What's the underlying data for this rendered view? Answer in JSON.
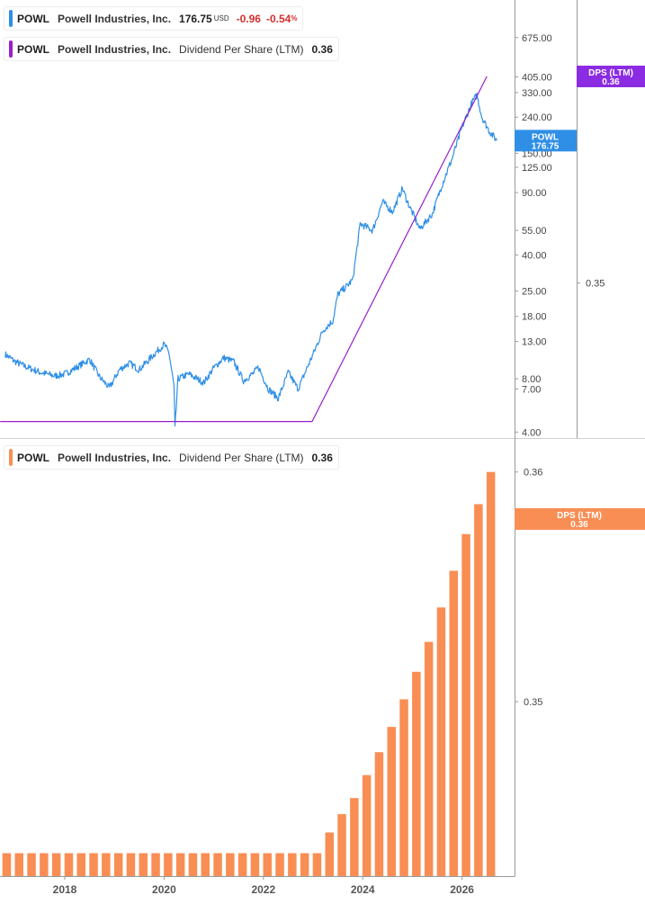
{
  "colors": {
    "price": "#2f8fe6",
    "dps_line": "#9a1fc9",
    "dps_bar": "#f98e55",
    "dps_tag_top": "#8b2be2",
    "dps_tag_bottom": "#f98e55",
    "price_tag": "#2f8fe6",
    "negative": "#d32f2f"
  },
  "legend_price": {
    "symbol": "POWL",
    "name": "Powell Industries, Inc.",
    "price": "176.75",
    "currency": "USD",
    "change": "-0.96",
    "change_pct": "-0.54",
    "pct_symbol": "%"
  },
  "legend_dps_top": {
    "symbol": "POWL",
    "name": "Powell Industries, Inc.",
    "metric": "Dividend Per Share (LTM)",
    "value": "0.36"
  },
  "legend_dps_bottom": {
    "symbol": "POWL",
    "name": "Powell Industries, Inc.",
    "metric": "Dividend Per Share (LTM)",
    "value": "0.36"
  },
  "tags": {
    "price": {
      "line1": "POWL",
      "line2": "176.75"
    },
    "dps_top": {
      "line1": "DPS (LTM)",
      "line2": "0.36"
    },
    "dps_bottom": {
      "line1": "DPS (LTM)",
      "line2": "0.36"
    }
  },
  "chart_data": [
    {
      "type": "line",
      "title": "",
      "x_ticks": [
        "2018",
        "2020",
        "2022",
        "2024",
        "2026"
      ],
      "y_scale": "log",
      "y_ticks": [
        "675.00",
        "405.00",
        "330.00",
        "240.00",
        "150.00",
        "125.00",
        "90.00",
        "55.00",
        "40.00",
        "25.00",
        "18.00",
        "13.00",
        "8.00",
        "7.00",
        "4.00"
      ],
      "ylim": [
        3.7,
        1100
      ],
      "series": [
        {
          "name": "POWL",
          "points": [
            [
              2016.8,
              11.0
            ],
            [
              2017.0,
              10.0
            ],
            [
              2017.2,
              9.4
            ],
            [
              2017.5,
              8.7
            ],
            [
              2017.8,
              8.3
            ],
            [
              2018.0,
              8.5
            ],
            [
              2018.3,
              9.5
            ],
            [
              2018.5,
              10.3
            ],
            [
              2018.7,
              8.2
            ],
            [
              2018.9,
              7.1
            ],
            [
              2019.1,
              9.0
            ],
            [
              2019.3,
              9.8
            ],
            [
              2019.5,
              9.0
            ],
            [
              2019.8,
              11.0
            ],
            [
              2020.0,
              12.5
            ],
            [
              2020.1,
              11.2
            ],
            [
              2020.2,
              7.2
            ],
            [
              2020.22,
              4.2
            ],
            [
              2020.28,
              8.0
            ],
            [
              2020.5,
              8.5
            ],
            [
              2020.8,
              7.6
            ],
            [
              2021.0,
              9.2
            ],
            [
              2021.2,
              10.5
            ],
            [
              2021.4,
              10.0
            ],
            [
              2021.6,
              7.8
            ],
            [
              2021.8,
              8.6
            ],
            [
              2021.9,
              9.3
            ],
            [
              2022.1,
              7.0
            ],
            [
              2022.3,
              6.2
            ],
            [
              2022.5,
              8.7
            ],
            [
              2022.7,
              7.0
            ],
            [
              2022.9,
              9.5
            ],
            [
              2023.0,
              11.0
            ],
            [
              2023.2,
              15.0
            ],
            [
              2023.4,
              17.0
            ],
            [
              2023.5,
              24.0
            ],
            [
              2023.7,
              27.0
            ],
            [
              2023.8,
              29.0
            ],
            [
              2023.95,
              60.0
            ],
            [
              2024.2,
              55.0
            ],
            [
              2024.4,
              80.0
            ],
            [
              2024.6,
              70.0
            ],
            [
              2024.8,
              95.0
            ],
            [
              2024.9,
              80.0
            ],
            [
              2025.15,
              56.0
            ],
            [
              2025.4,
              68.0
            ],
            [
              2025.6,
              100.0
            ],
            [
              2025.8,
              140.0
            ],
            [
              2026.0,
              210.0
            ],
            [
              2026.2,
              290.0
            ],
            [
              2026.3,
              320.0
            ],
            [
              2026.4,
              240.0
            ],
            [
              2026.55,
              200.0
            ],
            [
              2026.7,
              176.75
            ]
          ]
        },
        {
          "name": "Dividend Per Share (LTM)",
          "points": [
            [
              2016.7,
              0.3433
            ],
            [
              2022.98,
              0.3433
            ],
            [
              2026.5,
              0.36
            ]
          ]
        }
      ],
      "right_axis_ticks": [
        "0.36",
        "0.35"
      ],
      "right_axis_lim": [
        0.3425,
        0.3637
      ]
    },
    {
      "type": "bar",
      "title": "",
      "x_ticks": [
        "2018",
        "2020",
        "2022",
        "2024",
        "2026"
      ],
      "y_ticks": [
        "0.36",
        "0.35"
      ],
      "ylim": [
        0.3424,
        0.3614
      ],
      "series": [
        {
          "name": "Dividend Per Share (LTM)",
          "x": [
            2016.83,
            2017.08,
            2017.33,
            2017.58,
            2017.83,
            2018.08,
            2018.33,
            2018.58,
            2018.83,
            2019.08,
            2019.33,
            2019.58,
            2019.83,
            2020.08,
            2020.33,
            2020.58,
            2020.83,
            2021.08,
            2021.33,
            2021.58,
            2021.83,
            2022.08,
            2022.33,
            2022.58,
            2022.83,
            2023.08,
            2023.33,
            2023.58,
            2023.83,
            2024.08,
            2024.33,
            2024.58,
            2024.83,
            2025.08,
            2025.33,
            2025.58,
            2025.83,
            2026.08,
            2026.33,
            2026.58
          ],
          "values": [
            0.3434,
            0.3434,
            0.3434,
            0.3434,
            0.3434,
            0.3434,
            0.3434,
            0.3434,
            0.3434,
            0.3434,
            0.3434,
            0.3434,
            0.3434,
            0.3434,
            0.3434,
            0.3434,
            0.3434,
            0.3434,
            0.3434,
            0.3434,
            0.3434,
            0.3434,
            0.3434,
            0.3434,
            0.3434,
            0.3434,
            0.3443,
            0.3451,
            0.3458,
            0.3468,
            0.3478,
            0.3489,
            0.3501,
            0.3513,
            0.3526,
            0.3541,
            0.3557,
            0.3573,
            0.3586,
            0.36
          ]
        }
      ]
    }
  ]
}
